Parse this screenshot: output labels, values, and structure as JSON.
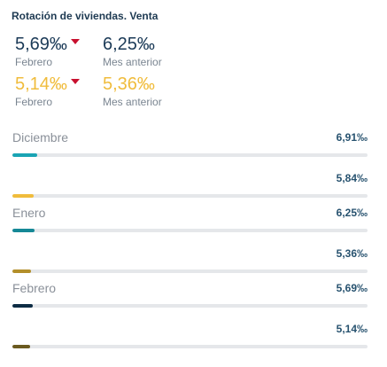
{
  "title": "Rotación de viviendas. Venta",
  "summary": [
    {
      "value": "5,69‰",
      "label": "Febrero",
      "color": "#1b3a57",
      "trend": "down"
    },
    {
      "value": "6,25‰",
      "label": "Mes anterior",
      "color": "#1b3a57"
    },
    {
      "value": "5,14‰",
      "label": "Febrero",
      "color": "#f0bc3c",
      "trend": "down"
    },
    {
      "value": "5,36‰",
      "label": "Mes anterior",
      "color": "#f0bc3c"
    }
  ],
  "rows": [
    {
      "label": "Diciembre",
      "value": "6,91‰",
      "fraction": 0.069,
      "color": "#1aa4b4"
    },
    {
      "label": "",
      "value": "5,84‰",
      "fraction": 0.059,
      "color": "#f0bc3c"
    },
    {
      "label": "Enero",
      "value": "6,25‰",
      "fraction": 0.063,
      "color": "#158896"
    },
    {
      "label": "",
      "value": "5,36‰",
      "fraction": 0.053,
      "color": "#b38f2a"
    },
    {
      "label": "Febrero",
      "value": "5,69‰",
      "fraction": 0.057,
      "color": "#0d2c44"
    },
    {
      "label": "",
      "value": "5,14‰",
      "fraction": 0.051,
      "color": "#6b5a1f"
    }
  ]
}
